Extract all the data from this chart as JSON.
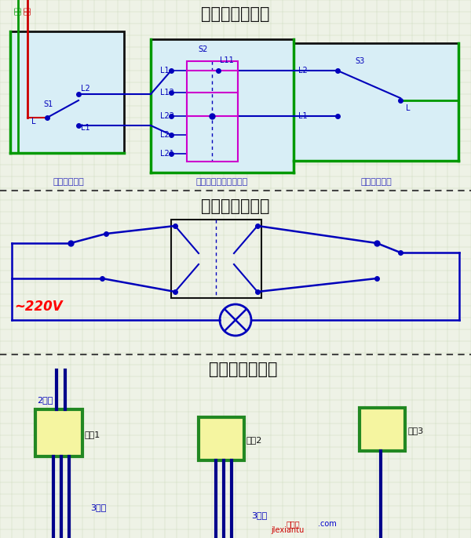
{
  "title1": "三控开关接线图",
  "title2": "三控开关原理图",
  "title3": "三控开关布线图",
  "bg_color": "#eef2e6",
  "grid_color": "#c8d8b8",
  "section1_label_left": "单开双控开关",
  "section1_label_mid": "中途开关（三控开关）",
  "section1_label_right": "单开双控开关",
  "label_220v": "~220V",
  "switch_labels": [
    "开关1",
    "开关2",
    "开关3"
  ],
  "wire_2": "2根线",
  "wire_3a": "3根线",
  "wire_3b": "3根线",
  "watermark1": "接线图",
  "watermark2": ".com",
  "watermark3": "jlexiantu"
}
